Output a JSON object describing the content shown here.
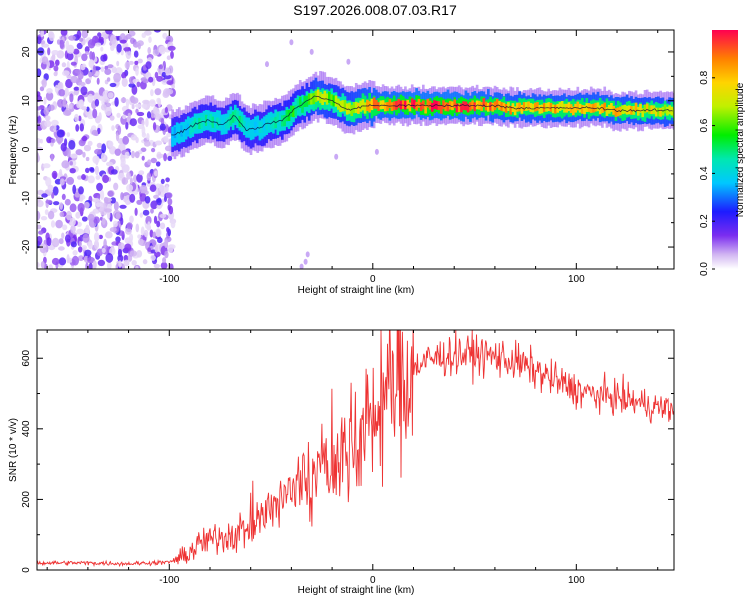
{
  "title": "S197.2026.008.07.03.R17",
  "chart_data": [
    {
      "type": "heatmap",
      "name": "spectrogram",
      "xlabel": "Height of straight line (km)",
      "ylabel": "Frequency (Hz)",
      "xlim": [
        -165,
        148
      ],
      "ylim": [
        -24.5,
        24.5
      ],
      "xticks": [
        -100,
        0,
        100
      ],
      "yticks": [
        -20,
        -10,
        0,
        10,
        20
      ],
      "colorbar": {
        "label": "Normalized spectral amplitude",
        "range": [
          0,
          1
        ],
        "ticks": [
          0.0,
          0.2,
          0.4,
          0.6,
          0.8
        ],
        "tick_labels": [
          "0.0",
          "0.2",
          "0.4",
          "0.6",
          "0.8"
        ]
      },
      "ridge": {
        "x": [
          -98,
          -92,
          -86,
          -80,
          -74,
          -68,
          -62,
          -56,
          -50,
          -44,
          -38,
          -32,
          -28,
          -24,
          -20,
          -16,
          -12,
          -8,
          -4,
          0,
          10,
          20,
          30,
          40,
          50,
          60,
          70,
          80,
          90,
          100,
          110,
          120,
          130,
          140,
          148
        ],
        "frequency": [
          3,
          4,
          5.5,
          6,
          5,
          7,
          4,
          4.5,
          5.5,
          6,
          8.5,
          10,
          11,
          10.5,
          10,
          9,
          8,
          8.5,
          9,
          9,
          9,
          9,
          9,
          9,
          9,
          9,
          8.5,
          8.5,
          8.5,
          8.5,
          8.5,
          8,
          8,
          8,
          8
        ],
        "amplitude": [
          0.35,
          0.4,
          0.45,
          0.45,
          0.4,
          0.5,
          0.4,
          0.4,
          0.45,
          0.5,
          0.55,
          0.6,
          0.75,
          0.7,
          0.65,
          0.65,
          0.7,
          0.75,
          0.8,
          0.85,
          0.9,
          0.95,
          0.95,
          0.95,
          0.9,
          0.85,
          0.8,
          0.8,
          0.8,
          0.8,
          0.8,
          0.8,
          0.75,
          0.75,
          0.75
        ]
      }
    },
    {
      "type": "line",
      "name": "snr",
      "xlabel": "Height of straight line (km)",
      "ylabel": "SNR (10 * v/v)",
      "xlim": [
        -165,
        148
      ],
      "ylim": [
        0,
        680
      ],
      "xticks": [
        -100,
        0,
        100
      ],
      "yticks": [
        0,
        200,
        400,
        600
      ],
      "color": "#ee3333",
      "trend": {
        "x": [
          -165,
          -140,
          -120,
          -100,
          -92,
          -85,
          -75,
          -65,
          -55,
          -45,
          -38,
          -30,
          -25,
          -18,
          -10,
          -5,
          0,
          10,
          20,
          30,
          40,
          50,
          60,
          70,
          80,
          90,
          100,
          110,
          120,
          130,
          140,
          148
        ],
        "snr": [
          20,
          20,
          18,
          22,
          40,
          75,
          95,
          110,
          145,
          190,
          240,
          250,
          285,
          310,
          350,
          380,
          430,
          520,
          575,
          600,
          610,
          612,
          605,
          590,
          565,
          535,
          510,
          495,
          490,
          475,
          460,
          455
        ]
      }
    }
  ]
}
